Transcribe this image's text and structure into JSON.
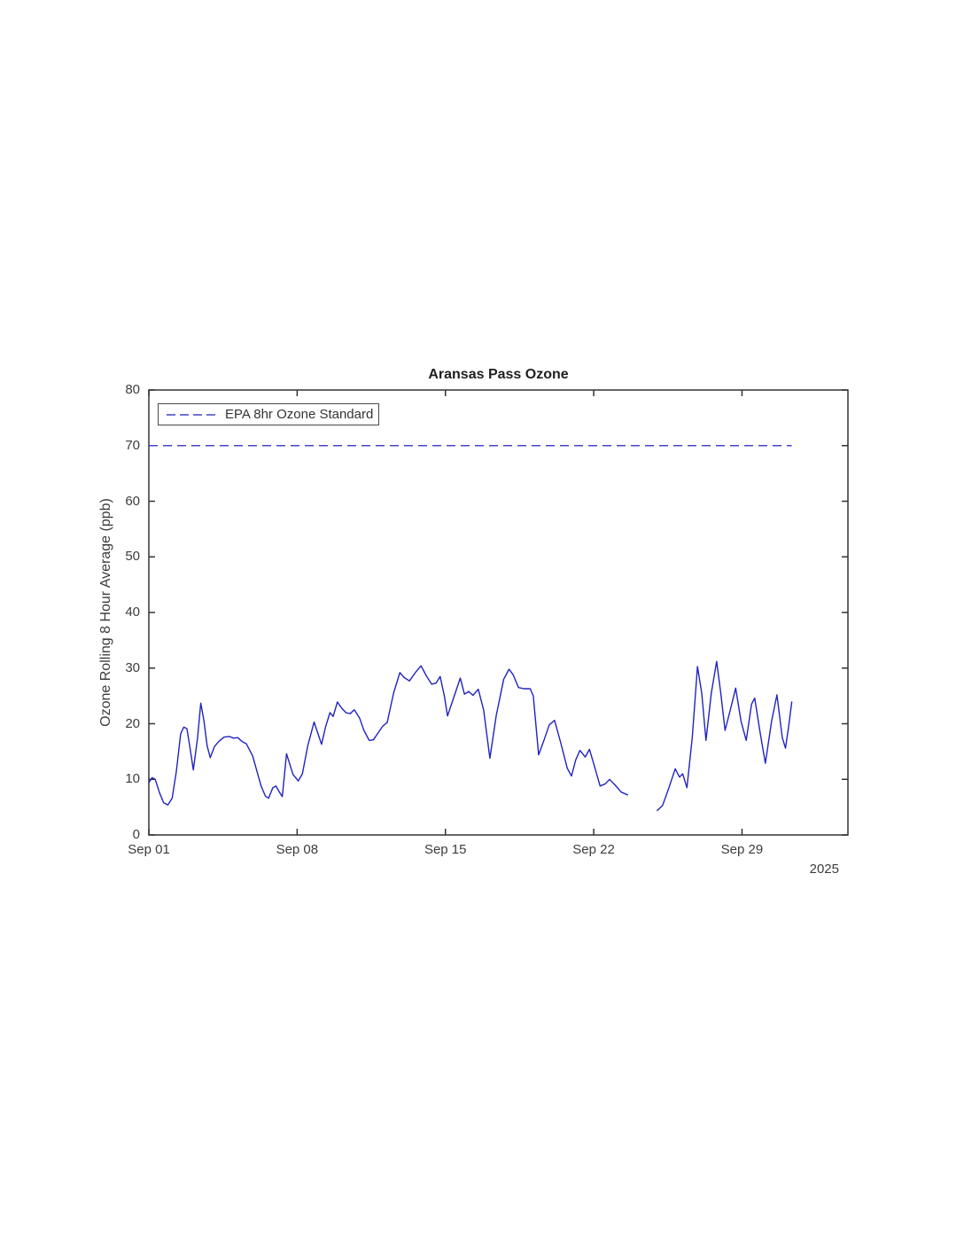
{
  "chart": {
    "title": "Aransas Pass Ozone",
    "ylabel": "Ozone Rolling 8 Hour Average (ppb)",
    "year_label": "2025",
    "legend_label": "EPA 8hr Ozone Standard"
  },
  "colors": {
    "ozone_line": "#2222c2",
    "standard_line": "#4444cc",
    "axis": "#333333",
    "tick_text": "#3c3c3c",
    "title_text": "#1f1f1f",
    "background": "#ffffff"
  },
  "chart_data": {
    "type": "line",
    "title": "Aransas Pass Ozone",
    "xlabel": "",
    "ylabel": "Ozone Rolling 8 Hour Average (ppb)",
    "x_unit": "days since Sep 01, 2025",
    "xlim": [
      0,
      33
    ],
    "ylim": [
      0,
      80
    ],
    "grid": false,
    "legend_position": "top-left-inside",
    "x_ticks": [
      {
        "day": 0,
        "label": "Sep 01"
      },
      {
        "day": 7,
        "label": "Sep 08"
      },
      {
        "day": 14,
        "label": "Sep 15"
      },
      {
        "day": 21,
        "label": "Sep 22"
      },
      {
        "day": 28,
        "label": "Sep 29"
      }
    ],
    "y_ticks": [
      0,
      10,
      20,
      30,
      40,
      50,
      60,
      70,
      80
    ],
    "series": [
      {
        "name": "Ozone Rolling 8 Hour Average (ppb)",
        "style": "solid",
        "color": "#2222c2",
        "segments": [
          [
            [
              0.0,
              9.4
            ],
            [
              0.15,
              10.3
            ],
            [
              0.3,
              10.0
            ],
            [
              0.5,
              7.6
            ],
            [
              0.7,
              5.8
            ],
            [
              0.9,
              5.4
            ],
            [
              1.1,
              6.6
            ],
            [
              1.3,
              11.5
            ],
            [
              1.5,
              18.2
            ],
            [
              1.65,
              19.4
            ],
            [
              1.8,
              19.1
            ],
            [
              1.95,
              15.5
            ],
            [
              2.1,
              11.7
            ],
            [
              2.3,
              17.5
            ],
            [
              2.45,
              23.7
            ],
            [
              2.6,
              20.5
            ],
            [
              2.75,
              16.0
            ],
            [
              2.9,
              13.9
            ],
            [
              3.1,
              15.9
            ],
            [
              3.3,
              16.8
            ],
            [
              3.55,
              17.6
            ],
            [
              3.8,
              17.7
            ],
            [
              4.0,
              17.4
            ],
            [
              4.2,
              17.5
            ],
            [
              4.4,
              16.8
            ],
            [
              4.6,
              16.4
            ],
            [
              4.9,
              14.2
            ],
            [
              5.1,
              11.5
            ],
            [
              5.3,
              8.8
            ],
            [
              5.5,
              7.0
            ],
            [
              5.65,
              6.6
            ],
            [
              5.85,
              8.5
            ],
            [
              6.0,
              8.8
            ],
            [
              6.15,
              7.8
            ],
            [
              6.3,
              6.9
            ],
            [
              6.5,
              14.6
            ],
            [
              6.8,
              10.9
            ],
            [
              7.05,
              9.7
            ],
            [
              7.25,
              11.0
            ],
            [
              7.5,
              16.0
            ],
            [
              7.8,
              20.3
            ],
            [
              8.0,
              18.0
            ],
            [
              8.15,
              16.3
            ],
            [
              8.35,
              19.5
            ],
            [
              8.55,
              22.0
            ],
            [
              8.7,
              21.3
            ],
            [
              8.9,
              23.9
            ],
            [
              9.1,
              22.8
            ],
            [
              9.3,
              22.0
            ],
            [
              9.5,
              21.8
            ],
            [
              9.7,
              22.5
            ],
            [
              9.95,
              21.0
            ],
            [
              10.15,
              18.8
            ],
            [
              10.4,
              17.0
            ],
            [
              10.6,
              17.1
            ],
            [
              10.85,
              18.5
            ],
            [
              11.05,
              19.6
            ],
            [
              11.25,
              20.2
            ],
            [
              11.55,
              25.5
            ],
            [
              11.85,
              29.2
            ],
            [
              12.05,
              28.3
            ],
            [
              12.3,
              27.7
            ],
            [
              12.6,
              29.3
            ],
            [
              12.85,
              30.4
            ],
            [
              13.1,
              28.6
            ],
            [
              13.35,
              27.1
            ],
            [
              13.55,
              27.3
            ],
            [
              13.75,
              28.5
            ],
            [
              13.95,
              25.0
            ],
            [
              14.1,
              21.4
            ],
            [
              14.4,
              24.8
            ],
            [
              14.7,
              28.2
            ],
            [
              14.9,
              25.3
            ],
            [
              15.1,
              25.8
            ],
            [
              15.3,
              25.1
            ],
            [
              15.55,
              26.2
            ],
            [
              15.8,
              22.5
            ],
            [
              16.1,
              13.8
            ],
            [
              16.4,
              21.5
            ],
            [
              16.75,
              28.0
            ],
            [
              17.0,
              29.8
            ],
            [
              17.2,
              28.8
            ],
            [
              17.45,
              26.5
            ],
            [
              17.7,
              26.3
            ],
            [
              18.0,
              26.3
            ],
            [
              18.15,
              25.0
            ],
            [
              18.4,
              14.4
            ],
            [
              18.65,
              17.0
            ],
            [
              18.9,
              19.8
            ],
            [
              19.15,
              20.6
            ],
            [
              19.45,
              16.5
            ],
            [
              19.75,
              12.0
            ],
            [
              19.95,
              10.6
            ],
            [
              20.15,
              13.5
            ],
            [
              20.35,
              15.2
            ],
            [
              20.6,
              14.0
            ],
            [
              20.8,
              15.4
            ],
            [
              21.0,
              12.8
            ],
            [
              21.3,
              8.8
            ],
            [
              21.55,
              9.2
            ],
            [
              21.75,
              10.0
            ],
            [
              22.0,
              9.0
            ],
            [
              22.3,
              7.7
            ],
            [
              22.6,
              7.2
            ]
          ],
          [
            [
              24.0,
              4.4
            ],
            [
              24.25,
              5.3
            ],
            [
              24.55,
              8.5
            ],
            [
              24.85,
              11.9
            ],
            [
              25.05,
              10.4
            ],
            [
              25.2,
              11.0
            ],
            [
              25.4,
              8.5
            ],
            [
              25.65,
              17.5
            ],
            [
              25.9,
              30.3
            ],
            [
              26.1,
              25.5
            ],
            [
              26.3,
              17.0
            ],
            [
              26.55,
              25.5
            ],
            [
              26.8,
              31.2
            ],
            [
              27.0,
              25.5
            ],
            [
              27.2,
              18.8
            ],
            [
              27.45,
              22.5
            ],
            [
              27.7,
              26.4
            ],
            [
              27.95,
              20.5
            ],
            [
              28.2,
              17.0
            ],
            [
              28.45,
              23.5
            ],
            [
              28.6,
              24.6
            ],
            [
              28.85,
              18.5
            ],
            [
              29.1,
              12.9
            ],
            [
              29.4,
              20.5
            ],
            [
              29.65,
              25.2
            ],
            [
              29.9,
              17.5
            ],
            [
              30.05,
              15.6
            ],
            [
              30.2,
              19.5
            ],
            [
              30.35,
              23.9
            ]
          ]
        ]
      },
      {
        "name": "EPA 8hr Ozone Standard",
        "style": "dashed",
        "color": "#4444cc",
        "y": 70,
        "x_span": [
          0,
          30.35
        ]
      }
    ]
  }
}
